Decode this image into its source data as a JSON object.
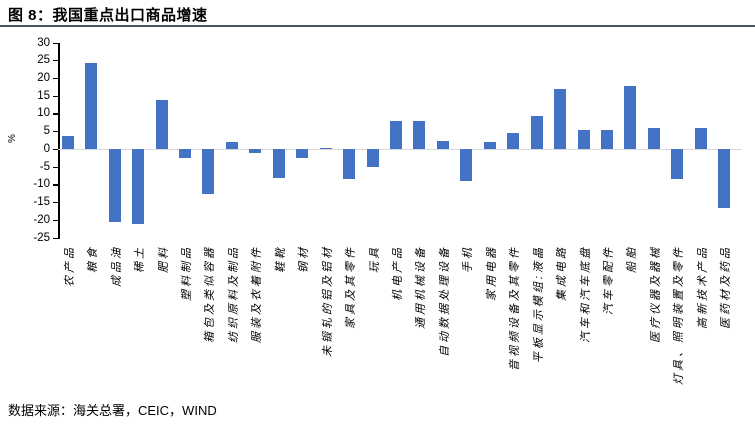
{
  "header": {
    "title": "图 8：我国重点出口商品增速"
  },
  "chart_data": {
    "type": "bar",
    "title": "图 8：我国重点出口商品增速",
    "xlabel": "",
    "ylabel": "%",
    "ylim": [
      -25,
      30
    ],
    "yticks": [
      30,
      25,
      20,
      15,
      10,
      5,
      0,
      -5,
      -10,
      -15,
      -20,
      -25
    ],
    "grid": "off",
    "legend": "none",
    "bar_color": "#4472C4",
    "zero_line_color": "#D9D9D9",
    "categories": [
      "农产品",
      "粮食",
      "成品油",
      "稀土",
      "肥料",
      "塑料制品",
      "箱包及类似容器",
      "纺织原料及制品",
      "服装及衣着附件",
      "鞋靴",
      "钢材",
      "未锻轧的铝及铝材",
      "家具及其零件",
      "玩具",
      "机电产品",
      "通用机械设备",
      "自动数据处理设备",
      "手机",
      "家用电器",
      "音视频设备及其零件",
      "平板显示模组:液晶",
      "集成电路",
      "汽车和汽车底盘",
      "汽车零配件",
      "船舶",
      "医疗仪器及器械",
      "灯具、照明装置及零件",
      "高新技术产品",
      "医药材及药品"
    ],
    "values": [
      3.7,
      24.5,
      -20.5,
      -21,
      14,
      -2.5,
      -12.5,
      2,
      -1,
      -8,
      -2.5,
      0.3,
      -8.5,
      -5,
      8,
      8,
      2.5,
      -9,
      2,
      4.5,
      9.5,
      17,
      5.5,
      5.5,
      18,
      6,
      -8.5,
      6,
      -16.5
    ]
  },
  "footer": {
    "source": "数据来源：海关总署，CEIC，WIND"
  }
}
